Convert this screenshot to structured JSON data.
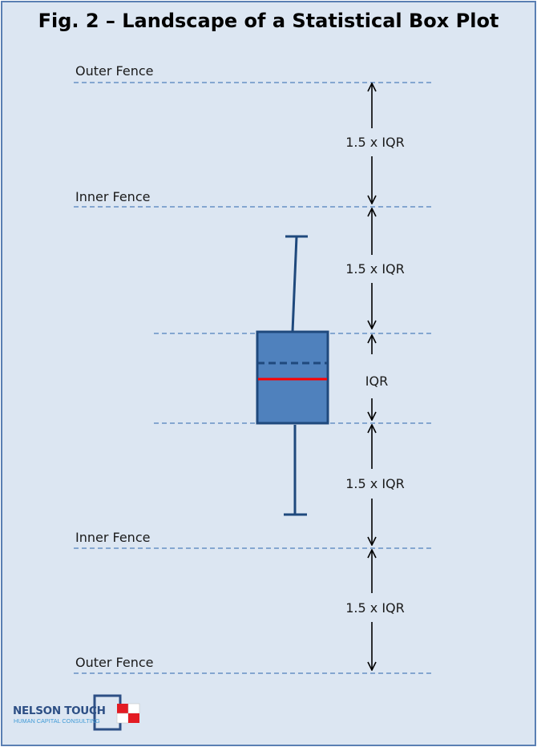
{
  "title": "Fig. 2 – Landscape of a Statistical Box Plot",
  "labels": {
    "outer_fence_top": "Outer Fence",
    "inner_fence_top": "Inner Fence",
    "inner_fence_bottom": "Inner Fence",
    "outer_fence_bottom": "Outer Fence"
  },
  "intervals": {
    "upper_outer": "1.5 x IQR",
    "upper_inner": "1.5 x IQR",
    "iqr": "IQR",
    "lower_inner": "1.5 x IQR",
    "lower_outer": "1.5 x IQR"
  },
  "logo": {
    "name": "NELSON TOUCH",
    "tagline": "HUMAN CAPITAL CONSULTING"
  },
  "colors": {
    "background": "#dce6f2",
    "box_fill": "#4f81bd",
    "box_stroke": "#1f497d",
    "median": "#ff0000",
    "guide_line": "#4f81bd"
  }
}
